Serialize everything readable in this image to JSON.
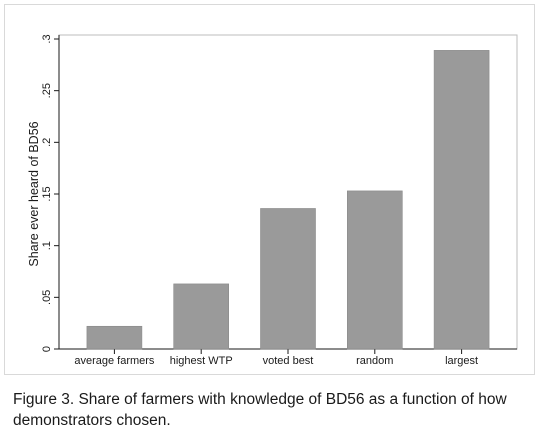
{
  "chart_data": {
    "type": "bar",
    "title": "",
    "xlabel": "",
    "ylabel": "Share ever heard of BD56",
    "categories": [
      "average farmers",
      "highest WTP",
      "voted best",
      "random",
      "largest"
    ],
    "values": [
      0.022,
      0.063,
      0.136,
      0.153,
      0.289
    ],
    "ylim": [
      0,
      0.3
    ],
    "yticks": [
      0,
      0.05,
      0.1,
      0.15,
      0.2,
      0.25,
      0.3
    ],
    "ytick_labels": [
      "0",
      ".05",
      ".1",
      ".15",
      ".2",
      ".25",
      ".3"
    ],
    "grid": false,
    "legend": "none",
    "bar_color": "#9a9a9a"
  },
  "caption": "Figure 3. Share of farmers with knowledge of BD56 as a function of how demonstrators chosen."
}
